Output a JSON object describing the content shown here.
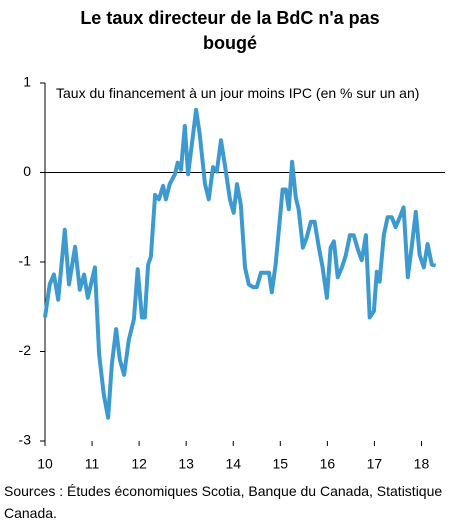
{
  "chart_data": {
    "type": "line",
    "title": "Le taux directeur de la BdC n'a pas bougé",
    "annotation": "Taux du financement à un jour moins IPC (en % sur un an)",
    "source": "Sources : Études économiques Scotia, Banque du Canada, Statistique Canada.",
    "xlim": [
      10,
      18.5
    ],
    "xticks": [
      10,
      11,
      12,
      13,
      14,
      15,
      16,
      17,
      18
    ],
    "ylim": [
      -3,
      1
    ],
    "yticks": [
      -3,
      -2,
      -1,
      0,
      1
    ],
    "series": [
      {
        "color": "#3d9ad1",
        "x": [
          10.0,
          10.1,
          10.19,
          10.28,
          10.42,
          10.51,
          10.64,
          10.74,
          10.83,
          10.91,
          11.06,
          11.15,
          11.25,
          11.34,
          11.42,
          11.51,
          11.59,
          11.68,
          11.78,
          11.89,
          11.97,
          12.06,
          12.12,
          12.19,
          12.25,
          12.34,
          12.42,
          12.51,
          12.57,
          12.65,
          12.76,
          12.82,
          12.89,
          12.97,
          13.04,
          13.12,
          13.21,
          13.29,
          13.4,
          13.48,
          13.57,
          13.65,
          13.74,
          13.82,
          13.93,
          14.01,
          14.08,
          14.16,
          14.25,
          14.33,
          14.42,
          14.5,
          14.59,
          14.67,
          14.76,
          14.82,
          14.9,
          14.99,
          15.05,
          15.12,
          15.18,
          15.25,
          15.33,
          15.39,
          15.48,
          15.56,
          15.65,
          15.73,
          15.82,
          15.9,
          15.99,
          16.07,
          16.14,
          16.22,
          16.31,
          16.39,
          16.48,
          16.56,
          16.65,
          16.73,
          16.82,
          16.9,
          16.99,
          17.05,
          17.11,
          17.2,
          17.28,
          17.37,
          17.45,
          17.54,
          17.62,
          17.71,
          17.79,
          17.88,
          17.96,
          18.05,
          18.13,
          18.22,
          18.3
        ],
        "values": [
          -1.62,
          -1.25,
          -1.14,
          -1.42,
          -0.64,
          -1.25,
          -0.83,
          -1.31,
          -1.14,
          -1.4,
          -1.06,
          -2.03,
          -2.48,
          -2.74,
          -2.15,
          -1.75,
          -2.09,
          -2.26,
          -1.87,
          -1.64,
          -1.08,
          -1.62,
          -1.62,
          -1.03,
          -0.94,
          -0.25,
          -0.3,
          -0.15,
          -0.3,
          -0.13,
          -0.02,
          0.11,
          0.03,
          0.52,
          -0.02,
          0.31,
          0.7,
          0.42,
          -0.13,
          -0.3,
          0.06,
          0.01,
          0.36,
          0.09,
          -0.3,
          -0.45,
          -0.13,
          -0.36,
          -1.06,
          -1.25,
          -1.28,
          -1.28,
          -1.12,
          -1.12,
          -1.12,
          -1.34,
          -1.03,
          -0.53,
          -0.19,
          -0.19,
          -0.41,
          0.12,
          -0.28,
          -0.41,
          -0.84,
          -0.73,
          -0.55,
          -0.55,
          -0.84,
          -1.06,
          -1.4,
          -0.84,
          -0.77,
          -1.17,
          -1.06,
          -0.93,
          -0.7,
          -0.7,
          -0.86,
          -0.98,
          -0.7,
          -1.62,
          -1.55,
          -1.11,
          -1.22,
          -0.7,
          -0.5,
          -0.5,
          -0.61,
          -0.5,
          -0.39,
          -1.17,
          -0.84,
          -0.44,
          -0.92,
          -1.06,
          -0.8,
          -1.03,
          -1.04
        ]
      }
    ]
  }
}
